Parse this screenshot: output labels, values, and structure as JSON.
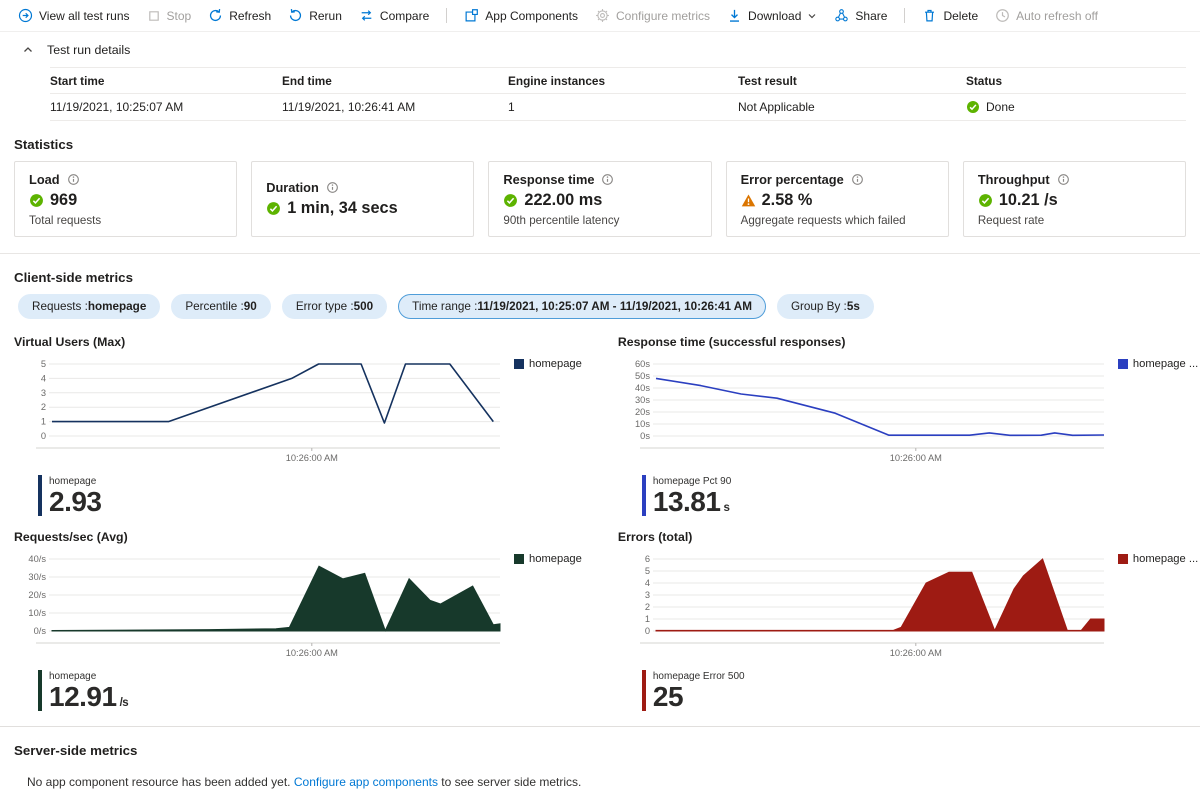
{
  "toolbar": {
    "items": [
      {
        "label": "View all test runs",
        "icon": "view-all-runs-icon",
        "enabled": true
      },
      {
        "label": "Stop",
        "icon": "stop-icon",
        "enabled": false
      },
      {
        "label": "Refresh",
        "icon": "refresh-icon",
        "enabled": true
      },
      {
        "label": "Rerun",
        "icon": "rerun-icon",
        "enabled": true
      },
      {
        "label": "Compare",
        "icon": "compare-icon",
        "enabled": true
      },
      {
        "label": "App Components",
        "icon": "app-components-icon",
        "enabled": true
      },
      {
        "label": "Configure metrics",
        "icon": "gear-icon",
        "enabled": false
      },
      {
        "label": "Download",
        "icon": "download-icon",
        "enabled": true
      },
      {
        "label": "Share",
        "icon": "share-icon",
        "enabled": true
      },
      {
        "label": "Delete",
        "icon": "delete-icon",
        "enabled": true
      },
      {
        "label": "Auto refresh off",
        "icon": "clock-icon",
        "enabled": false
      }
    ]
  },
  "test_run_details": {
    "title": "Test run details",
    "columns": [
      "Start time",
      "End time",
      "Engine instances",
      "Test result",
      "Status"
    ],
    "row": {
      "start_time": "11/19/2021, 10:25:07 AM",
      "end_time": "11/19/2021, 10:26:41 AM",
      "engine_instances": "1",
      "test_result": "Not Applicable",
      "status": "Done"
    }
  },
  "statistics": {
    "heading": "Statistics",
    "cards": [
      {
        "title": "Load",
        "value": "969",
        "subtitle": "Total requests",
        "status": "success"
      },
      {
        "title": "Duration",
        "value": "1 min, 34 secs",
        "subtitle": "",
        "status": "success"
      },
      {
        "title": "Response time",
        "value": "222.00 ms",
        "subtitle": "90th percentile latency",
        "status": "success"
      },
      {
        "title": "Error percentage",
        "value": "2.58 %",
        "subtitle": "Aggregate requests which failed",
        "status": "warning"
      },
      {
        "title": "Throughput",
        "value": "10.21 /s",
        "subtitle": "Request rate",
        "status": "success"
      }
    ]
  },
  "client_side": {
    "heading": "Client-side metrics",
    "pills": [
      {
        "label": "Requests : ",
        "value": "homepage",
        "selected": false
      },
      {
        "label": "Percentile : ",
        "value": "90",
        "selected": false
      },
      {
        "label": "Error type : ",
        "value": "500",
        "selected": false
      },
      {
        "label": "Time range : ",
        "value": "11/19/2021, 10:25:07 AM - 11/19/2021, 10:26:41 AM",
        "selected": true
      },
      {
        "label": "Group By : ",
        "value": "5s",
        "selected": false
      }
    ]
  },
  "chart_data": [
    {
      "type": "line",
      "title": "Virtual Users (Max)",
      "legend": "homepage",
      "color": "#15325f",
      "ymax": 5,
      "yticks": [
        0,
        1,
        2,
        3,
        4,
        5
      ],
      "ytick_suffix": "",
      "xtick": {
        "label": "10:26:00 AM",
        "pos": 0.58
      },
      "points": [
        [
          0,
          1
        ],
        [
          0.26,
          1
        ],
        [
          0.535,
          4
        ],
        [
          0.595,
          5
        ],
        [
          0.69,
          5
        ],
        [
          0.742,
          0.9
        ],
        [
          0.789,
          5
        ],
        [
          0.888,
          5
        ],
        [
          0.985,
          1
        ]
      ],
      "summary": {
        "label": "homepage",
        "value": "2.93",
        "unit": ""
      }
    },
    {
      "type": "line",
      "title": "Response time (successful responses)",
      "legend": "homepage ...",
      "color": "#2b3fc0",
      "ymax": 60,
      "yticks": [
        0,
        10,
        20,
        30,
        40,
        50,
        60
      ],
      "ytick_suffix": "s",
      "xtick": {
        "label": "10:26:00 AM",
        "pos": 0.58
      },
      "points": [
        [
          0,
          48
        ],
        [
          0.1,
          42
        ],
        [
          0.19,
          35
        ],
        [
          0.27,
          31.5
        ],
        [
          0.4,
          19
        ],
        [
          0.52,
          0.7
        ],
        [
          0.7,
          0.7
        ],
        [
          0.744,
          2.6
        ],
        [
          0.79,
          0.6
        ],
        [
          0.86,
          0.7
        ],
        [
          0.89,
          2.6
        ],
        [
          0.93,
          0.6
        ],
        [
          1,
          0.8
        ]
      ],
      "summary": {
        "label": "homepage Pct 90",
        "value": "13.81",
        "unit": "s"
      }
    },
    {
      "type": "area",
      "title": "Requests/sec (Avg)",
      "legend": "homepage",
      "color": "#17392b",
      "ymax": 40,
      "yticks": [
        0,
        10,
        20,
        30,
        40
      ],
      "ytick_suffix": "/s",
      "xtick": {
        "label": "10:26:00 AM",
        "pos": 0.58
      },
      "points": [
        [
          0,
          0.3
        ],
        [
          0.35,
          0.8
        ],
        [
          0.5,
          1.2
        ],
        [
          0.53,
          2
        ],
        [
          0.596,
          36
        ],
        [
          0.649,
          29
        ],
        [
          0.698,
          32
        ],
        [
          0.744,
          0.3
        ],
        [
          0.797,
          29
        ],
        [
          0.844,
          17
        ],
        [
          0.867,
          15
        ],
        [
          0.939,
          25
        ],
        [
          0.985,
          3.5
        ],
        [
          1,
          4
        ]
      ],
      "summary": {
        "label": "homepage",
        "value": "12.91",
        "unit": "/s"
      }
    },
    {
      "type": "area",
      "title": "Errors (total)",
      "legend": "homepage ...",
      "color": "#9e1b13",
      "ymax": 6,
      "yticks": [
        0,
        1,
        2,
        3,
        4,
        5,
        6
      ],
      "ytick_suffix": "",
      "xtick": {
        "label": "10:26:00 AM",
        "pos": 0.58
      },
      "points": [
        [
          0,
          0.05
        ],
        [
          0.53,
          0.05
        ],
        [
          0.547,
          0.3
        ],
        [
          0.603,
          4
        ],
        [
          0.654,
          4.9
        ],
        [
          0.705,
          4.9
        ],
        [
          0.756,
          0.05
        ],
        [
          0.799,
          3.5
        ],
        [
          0.82,
          4.6
        ],
        [
          0.863,
          6
        ],
        [
          0.918,
          0.05
        ],
        [
          0.949,
          0.05
        ],
        [
          0.97,
          1
        ],
        [
          1,
          1
        ]
      ],
      "summary": {
        "label": "homepage Error 500",
        "value": "25",
        "unit": ""
      }
    }
  ],
  "server_side": {
    "heading": "Server-side metrics",
    "text_before": "No app component resource has been added yet. ",
    "link_text": "Configure app components",
    "text_after": " to see server side metrics."
  },
  "colors": {
    "accent": "#0078d4",
    "success": "#5db300",
    "warning": "#db7500",
    "pill_bg": "#deecf9"
  }
}
